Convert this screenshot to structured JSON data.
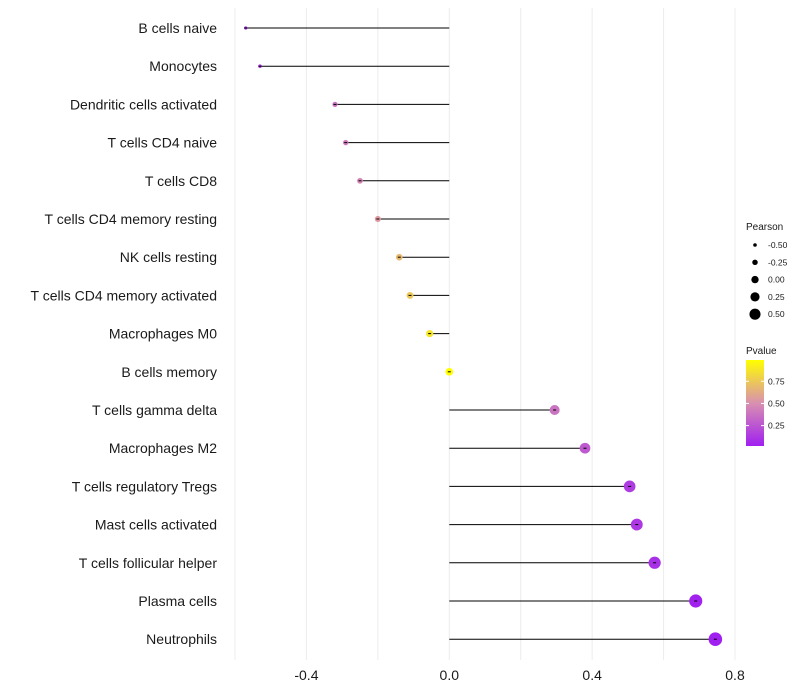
{
  "chart_data": {
    "type": "lollipop",
    "xlabel": "",
    "ylabel": "",
    "xlim": [
      -0.6,
      0.8
    ],
    "x_ticks": [
      {
        "value": -0.4,
        "label": "-0.4"
      },
      {
        "value": 0.0,
        "label": "0.0"
      },
      {
        "value": 0.4,
        "label": "0.4"
      },
      {
        "value": 0.8,
        "label": "0.8"
      }
    ],
    "items": [
      {
        "label": "B cells naive",
        "r": -0.57,
        "p": 0.05
      },
      {
        "label": "Monocytes",
        "r": -0.53,
        "p": 0.12
      },
      {
        "label": "Dendritic cells activated",
        "r": -0.32,
        "p": 0.38
      },
      {
        "label": "T cells CD4 naive",
        "r": -0.29,
        "p": 0.42
      },
      {
        "label": "T cells CD8",
        "r": -0.25,
        "p": 0.47
      },
      {
        "label": "T cells CD4 memory resting",
        "r": -0.2,
        "p": 0.55
      },
      {
        "label": "NK cells resting",
        "r": -0.14,
        "p": 0.68
      },
      {
        "label": "T cells CD4 memory activated",
        "r": -0.11,
        "p": 0.75
      },
      {
        "label": "Macrophages M0",
        "r": -0.055,
        "p": 0.88
      },
      {
        "label": "B cells memory",
        "r": 0.0,
        "p": 0.99
      },
      {
        "label": "T cells gamma delta",
        "r": 0.295,
        "p": 0.38
      },
      {
        "label": "Macrophages M2",
        "r": 0.38,
        "p": 0.27
      },
      {
        "label": "T cells regulatory  Tregs ",
        "r": 0.505,
        "p": 0.14
      },
      {
        "label": "Mast cells activated",
        "r": 0.525,
        "p": 0.12
      },
      {
        "label": "T cells follicular helper",
        "r": 0.575,
        "p": 0.09
      },
      {
        "label": "Plasma cells",
        "r": 0.69,
        "p": 0.03
      },
      {
        "label": "Neutrophils",
        "r": 0.745,
        "p": 0.02
      }
    ],
    "legend_size": {
      "title": "Pearson",
      "entries": [
        {
          "value": -0.5,
          "label": "-0.50"
        },
        {
          "value": -0.25,
          "label": "-0.25"
        },
        {
          "value": 0.0,
          "label": "0.00"
        },
        {
          "value": 0.25,
          "label": "0.25"
        },
        {
          "value": 0.5,
          "label": "0.50"
        }
      ]
    },
    "legend_color": {
      "title": "Pvalue",
      "range": [
        0.02,
        0.99
      ],
      "ticks": [
        {
          "value": 0.75,
          "label": "0.75"
        },
        {
          "value": 0.5,
          "label": "0.50"
        },
        {
          "value": 0.25,
          "label": "0.25"
        }
      ],
      "low_color": "#a020f0",
      "mid_color": "#d990b0",
      "high_color": "#ffff00"
    }
  }
}
